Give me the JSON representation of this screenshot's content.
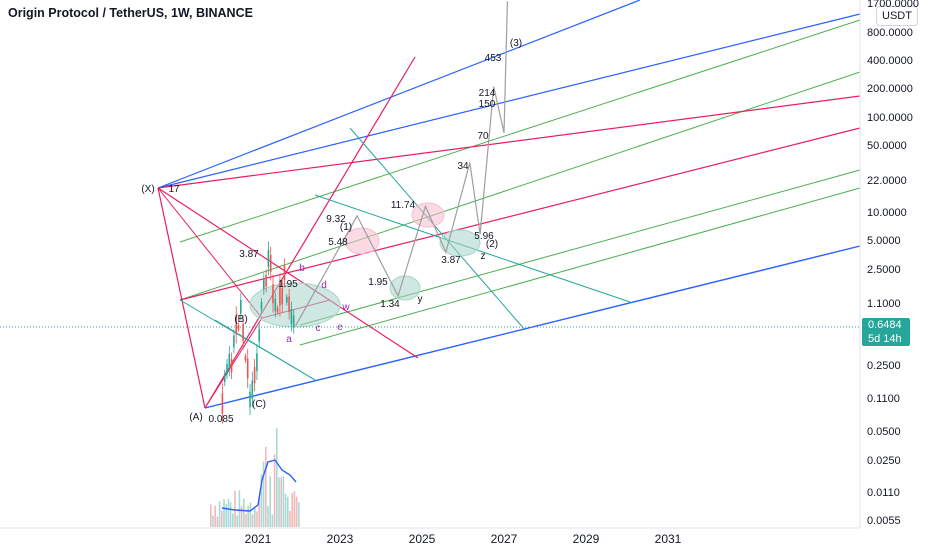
{
  "header": {
    "title": "Origin Protocol / TetherUS, 1W, BINANCE",
    "currency_button": "USDT"
  },
  "last_price": {
    "value": "0.6484",
    "countdown": "5d 14h",
    "color": "#26a69a"
  },
  "chart_data": {
    "type": "line",
    "y_scale": "log",
    "y_ticks": [
      "1700.0000",
      "800.0000",
      "400.0000",
      "200.0000",
      "100.0000",
      "50.0000",
      "22.0000",
      "10.0000",
      "5.0000",
      "2.5000",
      "1.1000",
      "0.6484",
      "0.2500",
      "0.1100",
      "0.0500",
      "0.0250",
      "0.0110",
      "0.0055"
    ],
    "x_ticks": [
      "2021",
      "2023",
      "2025",
      "2027",
      "2029",
      "2031"
    ],
    "grid": false,
    "price_path": [
      {
        "x": "2020-02",
        "y": 0.085
      },
      {
        "x": "2020-08",
        "y": 1.0
      },
      {
        "x": "2020-11",
        "y": 0.1
      },
      {
        "x": "2021-04",
        "y": 3.87
      },
      {
        "x": "2021-06",
        "y": 0.8
      },
      {
        "x": "2021-09",
        "y": 1.95
      },
      {
        "x": "2021-12",
        "y": 0.6484
      }
    ],
    "projection_path": [
      {
        "x": "2023-06",
        "y": 9.32
      },
      {
        "x": "2024-06",
        "y": 1.34
      },
      {
        "x": "2025-02",
        "y": 11.74
      },
      {
        "x": "2025-08",
        "y": 3.87
      },
      {
        "x": "2026-03",
        "y": 34
      },
      {
        "x": "2026-06",
        "y": 5.96
      },
      {
        "x": "2026-10",
        "y": 214
      },
      {
        "x": "2027-01",
        "y": 70
      },
      {
        "x": "2027-02",
        "y": 1700
      }
    ],
    "annotations": {
      "wave_labels": [
        "(X)",
        "(A)",
        "(B)",
        "(C)",
        "(1)",
        "(2)",
        "(3)",
        "a",
        "b",
        "c",
        "d",
        "e",
        "w",
        "y",
        "z"
      ],
      "price_labels": [
        "17",
        "0.085",
        "3.87",
        "1.95",
        "9.32",
        "5.48",
        "11.74",
        "5.96",
        "3.87",
        "1.95",
        "1.34",
        "34",
        "70",
        "150",
        "214",
        "453"
      ]
    },
    "colors": {
      "pitchfork_blue": "#2962ff",
      "pitchfork_green": "#4caf50",
      "median_red": "#e91e63",
      "fan_teal": "#26a69a",
      "volume_line": "#2962ff",
      "zone_green": "#a5d6c9",
      "zone_pink": "#f8bbd0",
      "projection_gray": "#9e9e9e"
    }
  }
}
